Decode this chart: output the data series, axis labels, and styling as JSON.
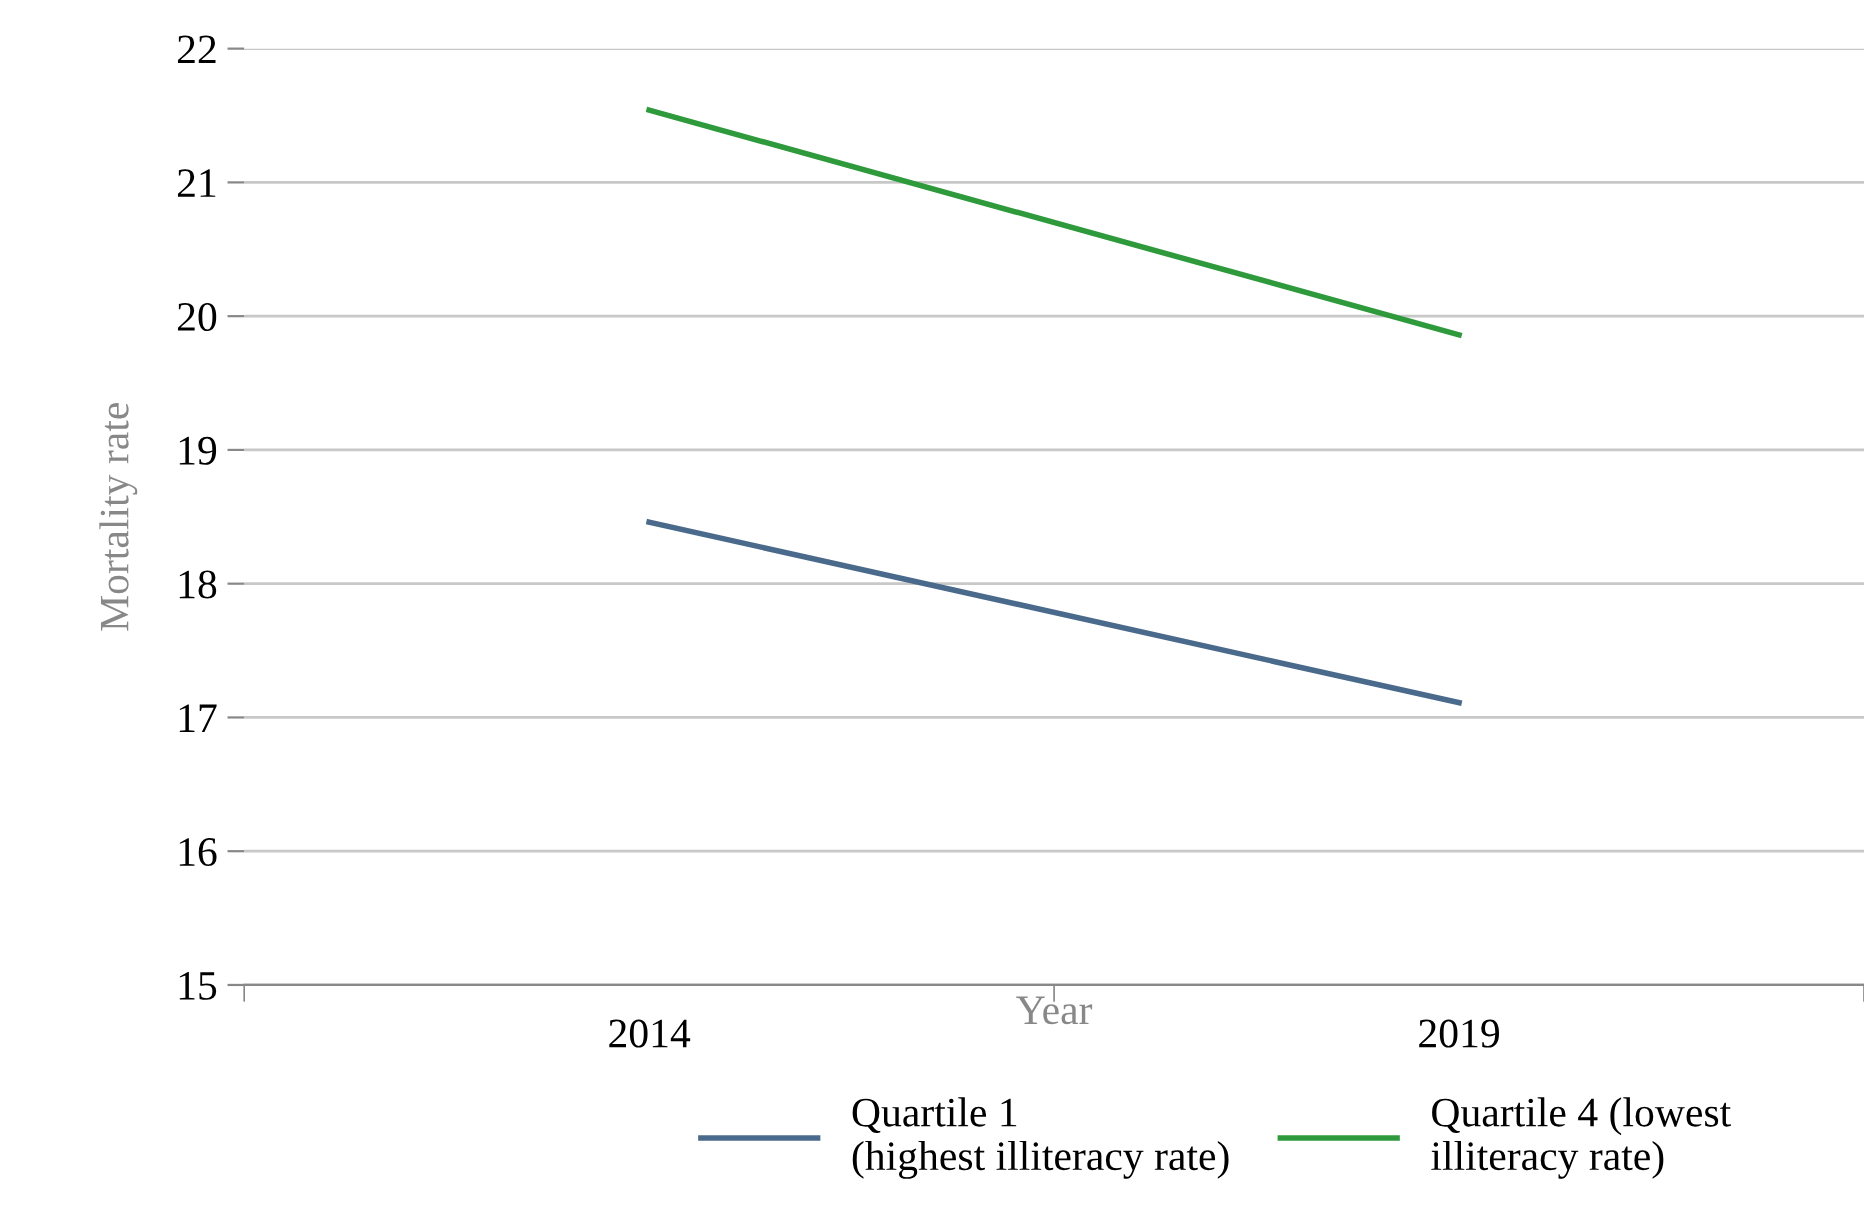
{
  "chart_data": {
    "type": "line",
    "categories": [
      "2014",
      "2019"
    ],
    "xlabel": "Year",
    "ylabel": "Mortality rate",
    "series": [
      {
        "name": "Quartile 1\n(highest illiteracy rate)",
        "color": "#4a6a8c",
        "values": [
          18.46,
          17.11
        ]
      },
      {
        "name": "Quartile 4 (lowest\nilliteracy rate)",
        "color": "#2e9a3c",
        "values": [
          21.54,
          19.86
        ]
      }
    ],
    "ylim": [
      15,
      22
    ],
    "yticks": [
      15,
      16,
      17,
      18,
      19,
      20,
      21,
      22
    ],
    "grid": "y",
    "legend": "bottom",
    "marker": "none",
    "line_style": "solid"
  }
}
